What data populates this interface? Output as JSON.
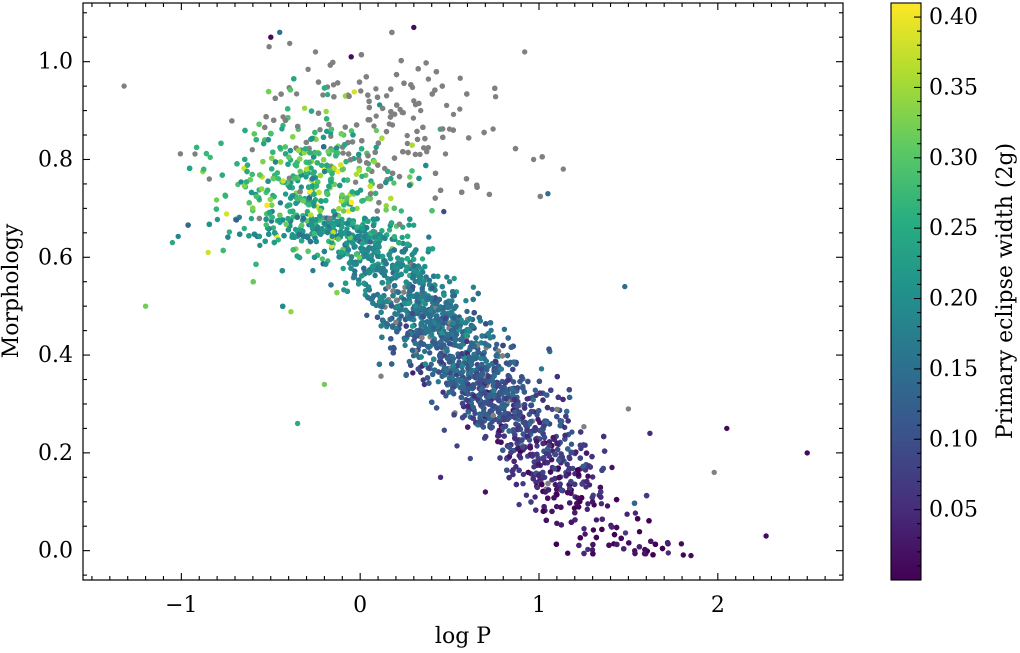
{
  "chart_data": {
    "type": "scatter",
    "title": "",
    "xlabel": "log P",
    "ylabel": "Morphology",
    "colorbar_label": "Primary eclipse width (2g)",
    "xlim": [
      -1.55,
      2.7
    ],
    "ylim": [
      -0.06,
      1.12
    ],
    "x_ticks": [
      -1,
      0,
      1,
      2
    ],
    "x_tick_labels": [
      "−1",
      "0",
      "1",
      "2"
    ],
    "y_ticks": [
      0.0,
      0.2,
      0.4,
      0.6,
      0.8,
      1.0
    ],
    "y_tick_labels": [
      "0.0",
      "0.2",
      "0.4",
      "0.6",
      "0.8",
      "1.0"
    ],
    "colorbar_range": [
      0.0,
      0.41
    ],
    "colorbar_ticks": [
      0.05,
      0.1,
      0.15,
      0.2,
      0.25,
      0.3,
      0.35,
      0.4
    ],
    "colorbar_tick_labels": [
      "0.05",
      "0.10",
      "0.15",
      "0.20",
      "0.25",
      "0.30",
      "0.35",
      "0.40"
    ],
    "colormap": "viridis",
    "missing_value_color": "#808080",
    "grid": false,
    "legend": "none",
    "approx_point_count": 5000,
    "series": [
      {
        "points_format": "[logP, morphology, eclipse_width or null]",
        "points": [
          [
            -1.32,
            0.95,
            null
          ],
          [
            -1.2,
            0.5,
            0.32
          ],
          [
            -1.05,
            0.63,
            0.25
          ],
          [
            -0.85,
            0.61,
            0.38
          ],
          [
            -0.5,
            1.05,
            0.01
          ],
          [
            -0.45,
            1.06,
            0.15
          ],
          [
            -0.25,
            1.02,
            null
          ],
          [
            -0.05,
            1.01,
            0.01
          ],
          [
            0.3,
            1.07,
            0.01
          ],
          [
            0.92,
            1.02,
            null
          ],
          [
            0.97,
            0.8,
            null
          ],
          [
            1.05,
            0.73,
            0.15
          ],
          [
            1.48,
            0.54,
            0.14
          ],
          [
            1.5,
            0.29,
            null
          ],
          [
            1.62,
            0.24,
            0.05
          ],
          [
            2.05,
            0.25,
            0.01
          ],
          [
            1.98,
            0.16,
            null
          ],
          [
            2.27,
            0.03,
            0.01
          ],
          [
            2.5,
            0.2,
            0.01
          ],
          [
            1.85,
            -0.01,
            0.01
          ],
          [
            -0.35,
            0.26,
            0.25
          ],
          [
            -0.2,
            0.34,
            0.32
          ],
          [
            0.45,
            0.15,
            0.05
          ],
          [
            0.7,
            0.12,
            0.02
          ],
          [
            -0.55,
            0.74,
            0.34
          ],
          [
            -0.3,
            0.78,
            0.36
          ],
          [
            0.1,
            0.61,
            0.22
          ],
          [
            0.5,
            0.55,
            0.18
          ],
          [
            0.8,
            0.42,
            0.08
          ],
          [
            1.1,
            0.22,
            0.04
          ],
          [
            1.3,
            0.1,
            0.02
          ],
          [
            0.3,
            0.92,
            null
          ]
        ]
      }
    ]
  }
}
